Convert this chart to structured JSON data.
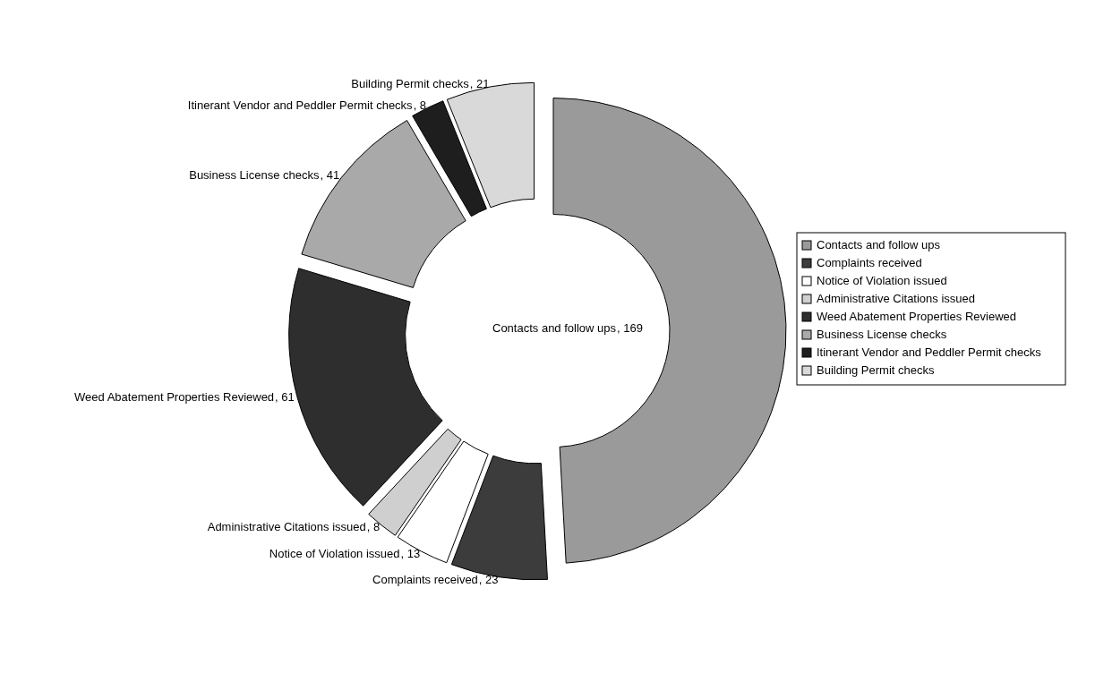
{
  "chart_data": {
    "type": "donut",
    "categories": [
      "Contacts and follow ups ",
      "Complaints received",
      "Notice of Violation issued",
      "Administrative Citations issued",
      "Weed Abatement Properties Reviewed",
      "Business License checks",
      "Itinerant Vendor and Peddler Permit checks",
      "Building Permit checks"
    ],
    "values": [
      169,
      23,
      13,
      8,
      61,
      41,
      8,
      21
    ],
    "colors": [
      "#9a9a9a",
      "#3c3c3c",
      "#ffffff",
      "#cfcfcf",
      "#2e2e2e",
      "#a9a9a9",
      "#1e1e1e",
      "#d9d9d9"
    ],
    "value_labels": [
      ", 169",
      ", 23",
      ", 13",
      ", 8",
      ", 61",
      ", 41",
      ", 8",
      ", 21"
    ],
    "legend": "right"
  }
}
